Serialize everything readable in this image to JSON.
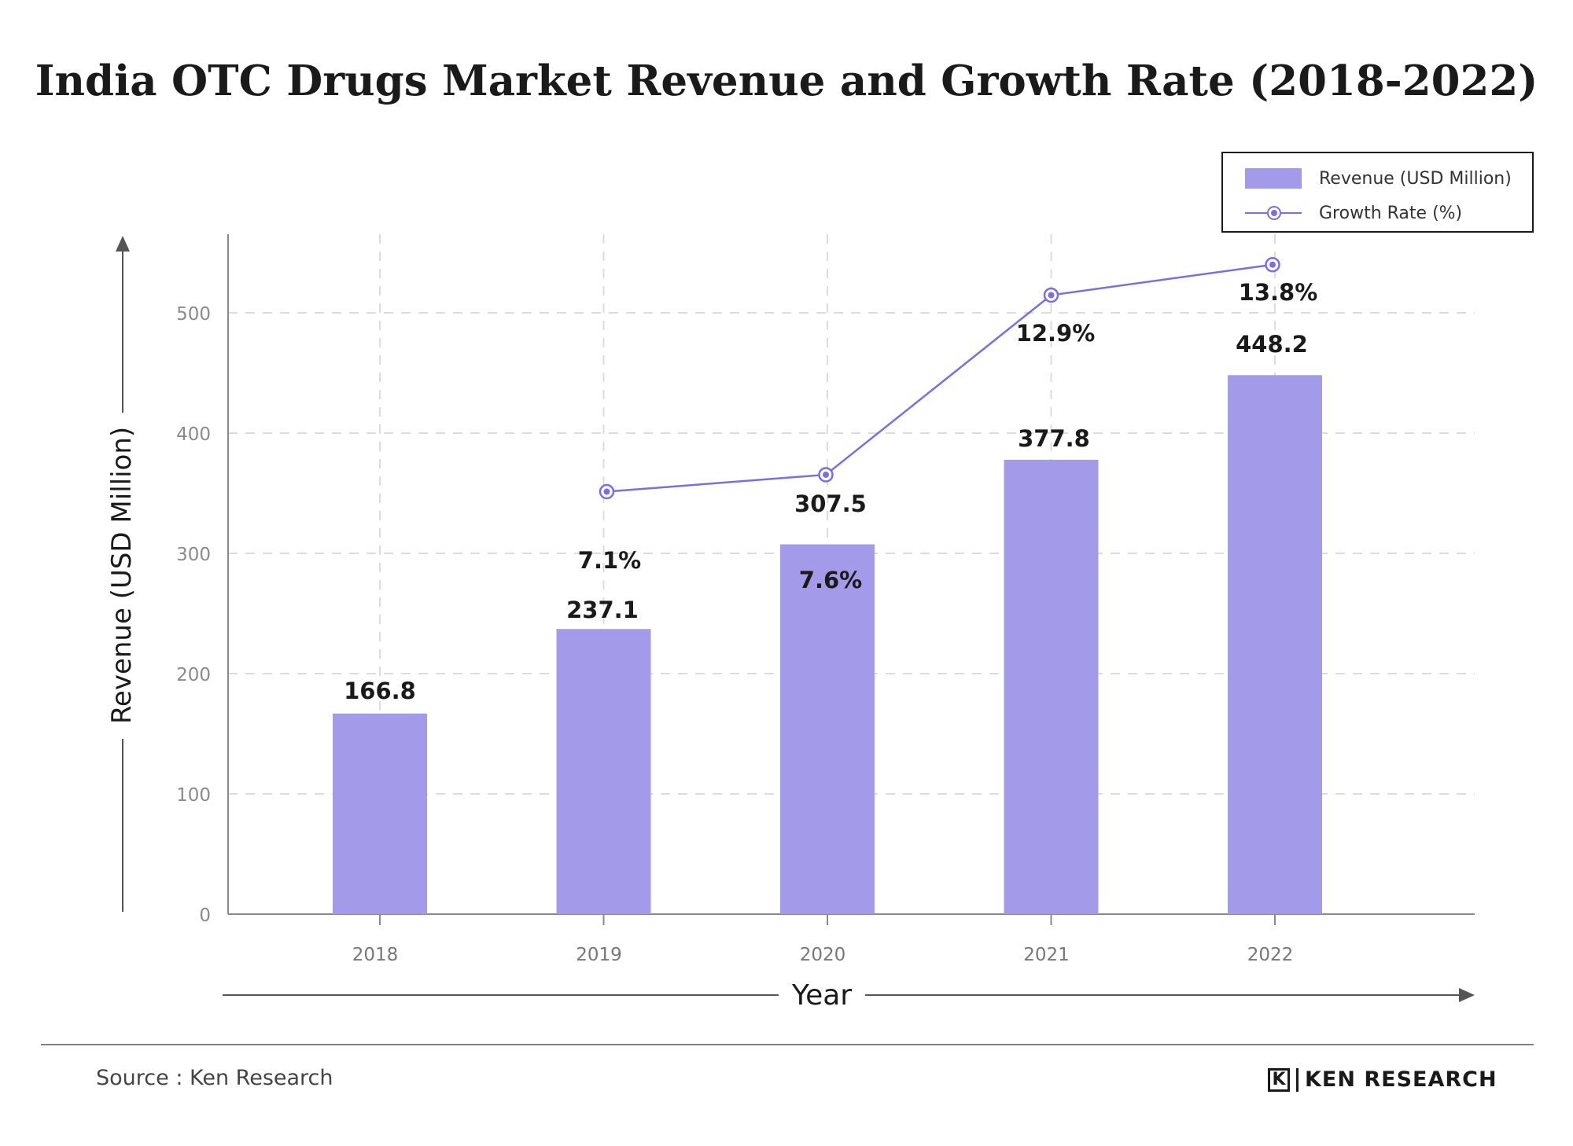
{
  "chart_data": {
    "type": "bar",
    "title": "India OTC Drugs Market Revenue and Growth Rate (2018-2022)",
    "xlabel": "Year",
    "ylabel": "Revenue (USD Million)",
    "categories": [
      "2018",
      "2019",
      "2020",
      "2021",
      "2022"
    ],
    "ylim": [
      0,
      560
    ],
    "yticks": [
      0,
      100,
      200,
      300,
      400,
      500
    ],
    "grid": true,
    "legend_position": "top-right",
    "series": [
      {
        "name": "Revenue (USD Million)",
        "type": "bar",
        "values": [
          166.8,
          237.1,
          307.5,
          377.8,
          448.2
        ],
        "labels": [
          "166.8",
          "237.1",
          "307.5",
          "377.8",
          "448.2"
        ],
        "color": "#a39bea"
      },
      {
        "name": "Growth Rate (%)",
        "type": "line",
        "values": [
          null,
          7.1,
          7.6,
          12.9,
          13.8
        ],
        "labels": [
          "",
          "7.1%",
          "7.6%",
          "12.9%",
          "13.8%"
        ],
        "color": "#7a6ee0"
      }
    ]
  },
  "legend": {
    "revenue_label": "Revenue (USD Million)",
    "growth_label": "Growth Rate (%)"
  },
  "footer": {
    "source": "Source : Ken Research",
    "brand_mark": "K",
    "brand_name": "KEN RESEARCH"
  },
  "colors": {
    "bar": "#a39bea",
    "line": "#7a6ee0",
    "grid": "#dcdcdc",
    "axis": "#8a8a8a"
  }
}
